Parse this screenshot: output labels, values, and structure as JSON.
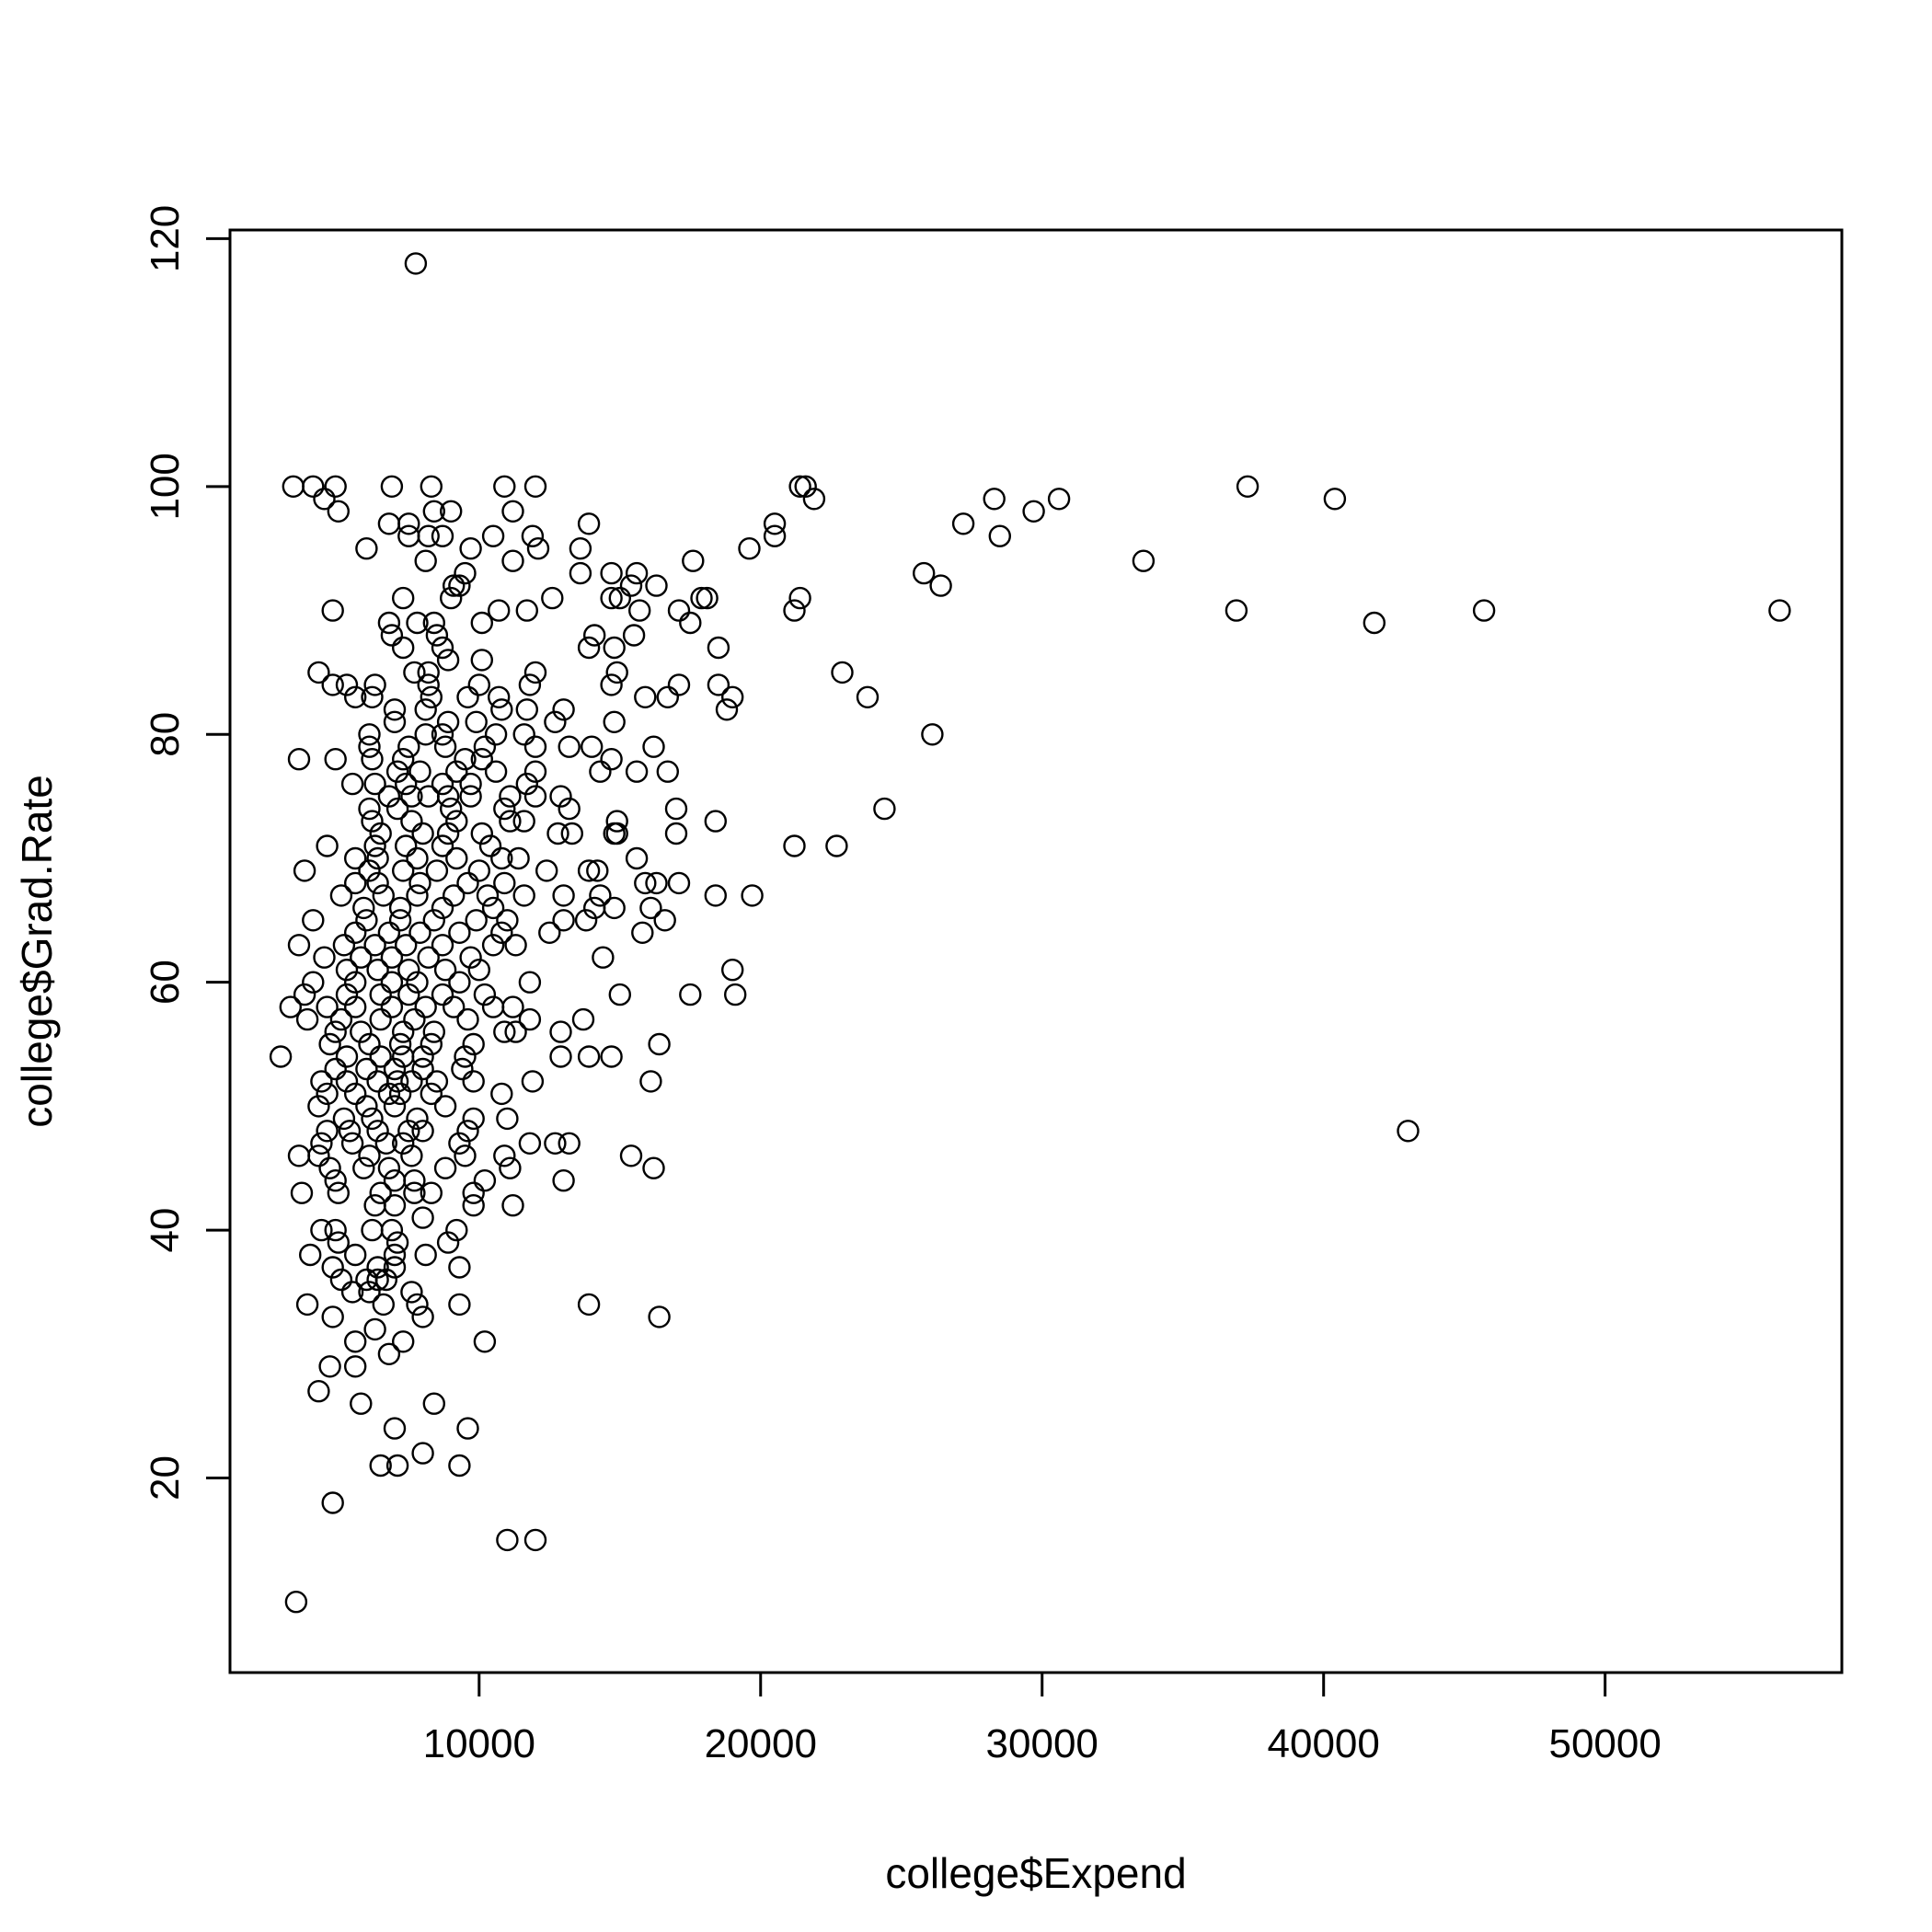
{
  "chart_data": {
    "type": "scatter",
    "title": "",
    "xlabel": "college$Expend",
    "ylabel": "college$Grad.Rate",
    "xlim": [
      1150,
      58410
    ],
    "ylim": [
      4.3,
      120.7
    ],
    "x_ticks": [
      10000,
      20000,
      30000,
      40000,
      50000
    ],
    "y_ticks": [
      20,
      40,
      60,
      80,
      100,
      120
    ],
    "x_tick_labels": [
      "10000",
      "20000",
      "30000",
      "40000",
      "50000"
    ],
    "y_tick_labels": [
      "20",
      "40",
      "60",
      "80",
      "100",
      "120"
    ],
    "grid": false,
    "legend": "none",
    "marker": "open-circle",
    "colors": {
      "marker": "#000000",
      "axis": "#000000",
      "background": "#ffffff"
    },
    "points": [
      [
        7750,
        118
      ],
      [
        3500,
        10
      ],
      [
        11000,
        15
      ],
      [
        12000,
        15
      ],
      [
        4800,
        18
      ],
      [
        6500,
        21
      ],
      [
        7100,
        21
      ],
      [
        9300,
        21
      ],
      [
        8000,
        22
      ],
      [
        7000,
        24
      ],
      [
        9600,
        24
      ],
      [
        8400,
        26
      ],
      [
        5800,
        26
      ],
      [
        4300,
        27
      ],
      [
        4700,
        29
      ],
      [
        5600,
        29
      ],
      [
        6800,
        30
      ],
      [
        5600,
        31
      ],
      [
        7300,
        31
      ],
      [
        10200,
        31
      ],
      [
        6300,
        32
      ],
      [
        4800,
        33
      ],
      [
        8000,
        33
      ],
      [
        16400,
        33
      ],
      [
        3900,
        34
      ],
      [
        6600,
        34
      ],
      [
        7800,
        34
      ],
      [
        9300,
        34
      ],
      [
        13900,
        34
      ],
      [
        5500,
        35
      ],
      [
        6100,
        35
      ],
      [
        7600,
        35
      ],
      [
        5100,
        36
      ],
      [
        6000,
        36
      ],
      [
        6400,
        36
      ],
      [
        6700,
        36
      ],
      [
        4800,
        37
      ],
      [
        6400,
        37
      ],
      [
        7000,
        37
      ],
      [
        9300,
        37
      ],
      [
        4000,
        38
      ],
      [
        5600,
        38
      ],
      [
        7000,
        38
      ],
      [
        8100,
        38
      ],
      [
        5000,
        39
      ],
      [
        7100,
        39
      ],
      [
        8900,
        39
      ],
      [
        4400,
        40
      ],
      [
        4900,
        40
      ],
      [
        6200,
        40
      ],
      [
        6900,
        40
      ],
      [
        9200,
        40
      ],
      [
        8000,
        41
      ],
      [
        6300,
        42
      ],
      [
        7000,
        42
      ],
      [
        9800,
        42
      ],
      [
        11200,
        42
      ],
      [
        3700,
        43
      ],
      [
        5000,
        43
      ],
      [
        6500,
        43
      ],
      [
        7700,
        43
      ],
      [
        8300,
        43
      ],
      [
        9800,
        43
      ],
      [
        4900,
        44
      ],
      [
        7000,
        44
      ],
      [
        7700,
        44
      ],
      [
        10200,
        44
      ],
      [
        13000,
        44
      ],
      [
        4700,
        45
      ],
      [
        5900,
        45
      ],
      [
        6800,
        45
      ],
      [
        8800,
        45
      ],
      [
        11100,
        45
      ],
      [
        16200,
        45
      ],
      [
        3600,
        46
      ],
      [
        4300,
        46
      ],
      [
        6100,
        46
      ],
      [
        7600,
        46
      ],
      [
        9500,
        46
      ],
      [
        10900,
        46
      ],
      [
        15400,
        46
      ],
      [
        4400,
        47
      ],
      [
        5500,
        47
      ],
      [
        6700,
        47
      ],
      [
        7300,
        47
      ],
      [
        9300,
        47
      ],
      [
        11800,
        47
      ],
      [
        12700,
        47
      ],
      [
        13200,
        47
      ],
      [
        4600,
        48
      ],
      [
        5400,
        48
      ],
      [
        6400,
        48
      ],
      [
        7500,
        48
      ],
      [
        8000,
        48
      ],
      [
        9600,
        48
      ],
      [
        43000,
        48
      ],
      [
        5200,
        49
      ],
      [
        6200,
        49
      ],
      [
        7800,
        49
      ],
      [
        9800,
        49
      ],
      [
        11000,
        49
      ],
      [
        4300,
        50
      ],
      [
        6000,
        50
      ],
      [
        7000,
        50
      ],
      [
        8800,
        50
      ],
      [
        4600,
        51
      ],
      [
        5600,
        51
      ],
      [
        6800,
        51
      ],
      [
        7200,
        51
      ],
      [
        8300,
        51
      ],
      [
        10800,
        51
      ],
      [
        4400,
        52
      ],
      [
        5300,
        52
      ],
      [
        6400,
        52
      ],
      [
        7100,
        52
      ],
      [
        7600,
        52
      ],
      [
        8500,
        52
      ],
      [
        9800,
        52
      ],
      [
        11900,
        52
      ],
      [
        16100,
        52
      ],
      [
        4900,
        53
      ],
      [
        6000,
        53
      ],
      [
        7000,
        53
      ],
      [
        8000,
        53
      ],
      [
        9400,
        53
      ],
      [
        2950,
        54
      ],
      [
        5300,
        54
      ],
      [
        6500,
        54
      ],
      [
        7300,
        54
      ],
      [
        8000,
        54
      ],
      [
        9500,
        54
      ],
      [
        12900,
        54
      ],
      [
        13900,
        54
      ],
      [
        14700,
        54
      ],
      [
        4700,
        55
      ],
      [
        6100,
        55
      ],
      [
        7200,
        55
      ],
      [
        8300,
        55
      ],
      [
        9800,
        55
      ],
      [
        16400,
        55
      ],
      [
        4900,
        56
      ],
      [
        5800,
        56
      ],
      [
        7300,
        56
      ],
      [
        8400,
        56
      ],
      [
        10900,
        56
      ],
      [
        11300,
        56
      ],
      [
        12900,
        56
      ],
      [
        3900,
        57
      ],
      [
        5100,
        57
      ],
      [
        6500,
        57
      ],
      [
        7700,
        57
      ],
      [
        9600,
        57
      ],
      [
        11800,
        57
      ],
      [
        13700,
        57
      ],
      [
        3300,
        58
      ],
      [
        4600,
        58
      ],
      [
        5600,
        58
      ],
      [
        6900,
        58
      ],
      [
        8100,
        58
      ],
      [
        9100,
        58
      ],
      [
        10500,
        58
      ],
      [
        11200,
        58
      ],
      [
        3800,
        59
      ],
      [
        5300,
        59
      ],
      [
        6500,
        59
      ],
      [
        7500,
        59
      ],
      [
        8700,
        59
      ],
      [
        10200,
        59
      ],
      [
        15000,
        59
      ],
      [
        17500,
        59
      ],
      [
        19100,
        59
      ],
      [
        4100,
        60
      ],
      [
        5600,
        60
      ],
      [
        6900,
        60
      ],
      [
        7800,
        60
      ],
      [
        9300,
        60
      ],
      [
        11800,
        60
      ],
      [
        5300,
        61
      ],
      [
        6400,
        61
      ],
      [
        7500,
        61
      ],
      [
        8800,
        61
      ],
      [
        10000,
        61
      ],
      [
        19000,
        61
      ],
      [
        4500,
        62
      ],
      [
        5800,
        62
      ],
      [
        6900,
        62
      ],
      [
        8200,
        62
      ],
      [
        9700,
        62
      ],
      [
        14400,
        62
      ],
      [
        3600,
        63
      ],
      [
        5200,
        63
      ],
      [
        6300,
        63
      ],
      [
        7400,
        63
      ],
      [
        8700,
        63
      ],
      [
        10500,
        63
      ],
      [
        11300,
        63
      ],
      [
        5600,
        64
      ],
      [
        6800,
        64
      ],
      [
        7900,
        64
      ],
      [
        9300,
        64
      ],
      [
        10800,
        64
      ],
      [
        12500,
        64
      ],
      [
        15800,
        64
      ],
      [
        4100,
        65
      ],
      [
        6000,
        65
      ],
      [
        7200,
        65
      ],
      [
        8400,
        65
      ],
      [
        9900,
        65
      ],
      [
        11000,
        65
      ],
      [
        13000,
        65
      ],
      [
        13800,
        65
      ],
      [
        16600,
        65
      ],
      [
        5900,
        66
      ],
      [
        7200,
        66
      ],
      [
        8700,
        66
      ],
      [
        10500,
        66
      ],
      [
        14100,
        66
      ],
      [
        14800,
        66
      ],
      [
        16100,
        66
      ],
      [
        5100,
        67
      ],
      [
        6600,
        67
      ],
      [
        7800,
        67
      ],
      [
        9100,
        67
      ],
      [
        10300,
        67
      ],
      [
        11600,
        67
      ],
      [
        13000,
        67
      ],
      [
        14300,
        67
      ],
      [
        18400,
        67
      ],
      [
        19700,
        67
      ],
      [
        5600,
        68
      ],
      [
        6400,
        68
      ],
      [
        7900,
        68
      ],
      [
        9600,
        68
      ],
      [
        10900,
        68
      ],
      [
        15900,
        68
      ],
      [
        16300,
        68
      ],
      [
        17100,
        68
      ],
      [
        3800,
        69
      ],
      [
        6100,
        69
      ],
      [
        7300,
        69
      ],
      [
        8500,
        69
      ],
      [
        10000,
        69
      ],
      [
        12400,
        69
      ],
      [
        13900,
        69
      ],
      [
        14200,
        69
      ],
      [
        5600,
        70
      ],
      [
        6400,
        70
      ],
      [
        7800,
        70
      ],
      [
        9200,
        70
      ],
      [
        10800,
        70
      ],
      [
        11400,
        70
      ],
      [
        15600,
        70
      ],
      [
        4600,
        71
      ],
      [
        6300,
        71
      ],
      [
        7400,
        71
      ],
      [
        8700,
        71
      ],
      [
        10400,
        71
      ],
      [
        21200,
        71
      ],
      [
        22700,
        71
      ],
      [
        6500,
        72
      ],
      [
        8000,
        72
      ],
      [
        8900,
        72
      ],
      [
        10100,
        72
      ],
      [
        12800,
        72
      ],
      [
        13300,
        72
      ],
      [
        14800,
        72
      ],
      [
        14900,
        72
      ],
      [
        17000,
        72
      ],
      [
        6200,
        73
      ],
      [
        7600,
        73
      ],
      [
        9200,
        73
      ],
      [
        11100,
        73
      ],
      [
        11600,
        73
      ],
      [
        14900,
        73
      ],
      [
        18400,
        73
      ],
      [
        6100,
        74
      ],
      [
        7100,
        74
      ],
      [
        9000,
        74
      ],
      [
        10900,
        74
      ],
      [
        13200,
        74
      ],
      [
        17000,
        74
      ],
      [
        24400,
        74
      ],
      [
        6800,
        75
      ],
      [
        7600,
        75
      ],
      [
        8200,
        75
      ],
      [
        8900,
        75
      ],
      [
        9700,
        75
      ],
      [
        11100,
        75
      ],
      [
        12000,
        75
      ],
      [
        12900,
        75
      ],
      [
        5500,
        76
      ],
      [
        6300,
        76
      ],
      [
        7400,
        76
      ],
      [
        8700,
        76
      ],
      [
        9700,
        76
      ],
      [
        11700,
        76
      ],
      [
        7100,
        77
      ],
      [
        7900,
        77
      ],
      [
        9200,
        77
      ],
      [
        10600,
        77
      ],
      [
        12000,
        77
      ],
      [
        14300,
        77
      ],
      [
        15600,
        77
      ],
      [
        16700,
        77
      ],
      [
        3600,
        78
      ],
      [
        4900,
        78
      ],
      [
        6200,
        78
      ],
      [
        7300,
        78
      ],
      [
        9500,
        78
      ],
      [
        10100,
        78
      ],
      [
        14700,
        78
      ],
      [
        6100,
        79
      ],
      [
        7500,
        79
      ],
      [
        8800,
        79
      ],
      [
        10200,
        79
      ],
      [
        12000,
        79
      ],
      [
        13200,
        79
      ],
      [
        14000,
        79
      ],
      [
        16200,
        79
      ],
      [
        6100,
        80
      ],
      [
        8100,
        80
      ],
      [
        8700,
        80
      ],
      [
        10600,
        80
      ],
      [
        11600,
        80
      ],
      [
        26100,
        80
      ],
      [
        7000,
        81
      ],
      [
        8900,
        81
      ],
      [
        9900,
        81
      ],
      [
        12700,
        81
      ],
      [
        14800,
        81
      ],
      [
        7000,
        82
      ],
      [
        8100,
        82
      ],
      [
        10800,
        82
      ],
      [
        11700,
        82
      ],
      [
        13000,
        82
      ],
      [
        18800,
        82
      ],
      [
        5600,
        83
      ],
      [
        6200,
        83
      ],
      [
        8300,
        83
      ],
      [
        9600,
        83
      ],
      [
        10700,
        83
      ],
      [
        15900,
        83
      ],
      [
        16700,
        83
      ],
      [
        19000,
        83
      ],
      [
        23800,
        83
      ],
      [
        4800,
        84
      ],
      [
        5300,
        84
      ],
      [
        6300,
        84
      ],
      [
        8200,
        84
      ],
      [
        10000,
        84
      ],
      [
        11800,
        84
      ],
      [
        14700,
        84
      ],
      [
        17100,
        84
      ],
      [
        18500,
        84
      ],
      [
        4300,
        85
      ],
      [
        7700,
        85
      ],
      [
        8200,
        85
      ],
      [
        12000,
        85
      ],
      [
        14900,
        85
      ],
      [
        22900,
        85
      ],
      [
        8900,
        86
      ],
      [
        10100,
        86
      ],
      [
        7300,
        87
      ],
      [
        8700,
        87
      ],
      [
        13900,
        87
      ],
      [
        14800,
        87
      ],
      [
        18500,
        87
      ],
      [
        6900,
        88
      ],
      [
        8500,
        88
      ],
      [
        14100,
        88
      ],
      [
        15500,
        88
      ],
      [
        6800,
        89
      ],
      [
        7800,
        89
      ],
      [
        8400,
        89
      ],
      [
        10100,
        89
      ],
      [
        17500,
        89
      ],
      [
        41800,
        89
      ],
      [
        4800,
        90
      ],
      [
        10700,
        90
      ],
      [
        11700,
        90
      ],
      [
        15700,
        90
      ],
      [
        17100,
        90
      ],
      [
        21200,
        90
      ],
      [
        36900,
        90
      ],
      [
        45700,
        90
      ],
      [
        56200,
        90
      ],
      [
        7300,
        91
      ],
      [
        9000,
        91
      ],
      [
        12600,
        91
      ],
      [
        14700,
        91
      ],
      [
        15000,
        91
      ],
      [
        17900,
        91
      ],
      [
        18100,
        91
      ],
      [
        21400,
        91
      ],
      [
        9100,
        92
      ],
      [
        9300,
        92
      ],
      [
        15400,
        92
      ],
      [
        16300,
        92
      ],
      [
        26400,
        92
      ],
      [
        9500,
        93
      ],
      [
        13600,
        93
      ],
      [
        14700,
        93
      ],
      [
        15600,
        93
      ],
      [
        25800,
        93
      ],
      [
        8100,
        94
      ],
      [
        11200,
        94
      ],
      [
        17600,
        94
      ],
      [
        33600,
        94
      ],
      [
        6000,
        95
      ],
      [
        9700,
        95
      ],
      [
        12100,
        95
      ],
      [
        13600,
        95
      ],
      [
        19600,
        95
      ],
      [
        7500,
        96
      ],
      [
        8200,
        96
      ],
      [
        8700,
        96
      ],
      [
        10500,
        96
      ],
      [
        11900,
        96
      ],
      [
        20500,
        96
      ],
      [
        28500,
        96
      ],
      [
        6800,
        97
      ],
      [
        7500,
        97
      ],
      [
        13900,
        97
      ],
      [
        20500,
        97
      ],
      [
        27200,
        97
      ],
      [
        5000,
        98
      ],
      [
        8400,
        98
      ],
      [
        9000,
        98
      ],
      [
        11200,
        98
      ],
      [
        29700,
        98
      ],
      [
        4500,
        99
      ],
      [
        21900,
        99
      ],
      [
        28300,
        99
      ],
      [
        30600,
        99
      ],
      [
        40400,
        99
      ],
      [
        3400,
        100
      ],
      [
        4100,
        100
      ],
      [
        4900,
        100
      ],
      [
        6900,
        100
      ],
      [
        8300,
        100
      ],
      [
        10900,
        100
      ],
      [
        12000,
        100
      ],
      [
        21400,
        100
      ],
      [
        21600,
        100
      ],
      [
        37300,
        100
      ]
    ]
  }
}
